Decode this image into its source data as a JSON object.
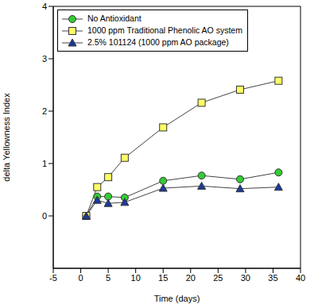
{
  "chart_data": {
    "type": "line",
    "xlabel": "Time (days)",
    "ylabel": "delta Yellowness Index",
    "x": [
      1,
      3,
      5,
      8,
      15,
      22,
      29,
      36
    ],
    "xlim": [
      -5,
      40
    ],
    "xticks": [
      -5,
      0,
      5,
      10,
      15,
      20,
      25,
      30,
      35,
      40
    ],
    "ylim": [
      -1,
      4
    ],
    "yticks": [
      0,
      1,
      2,
      3,
      4
    ],
    "grid": false,
    "legend": "upper left",
    "series": [
      {
        "name": "No Antioxidant",
        "color": "#33cc33",
        "marker": "circle",
        "values": [
          0,
          0.37,
          0.37,
          0.35,
          0.67,
          0.77,
          0.7,
          0.83
        ]
      },
      {
        "name": "1000 ppm Traditional Phenolic AO system",
        "color": "#ffff66",
        "marker": "square",
        "values": [
          0,
          0.55,
          0.74,
          1.11,
          1.69,
          2.16,
          2.41,
          2.58
        ]
      },
      {
        "name": "2.5% 101124 (1000 ppm AO package)",
        "color": "#1a3a9a",
        "marker": "triangle",
        "values": [
          0,
          0.3,
          0.24,
          0.26,
          0.53,
          0.57,
          0.52,
          0.55
        ]
      }
    ]
  }
}
